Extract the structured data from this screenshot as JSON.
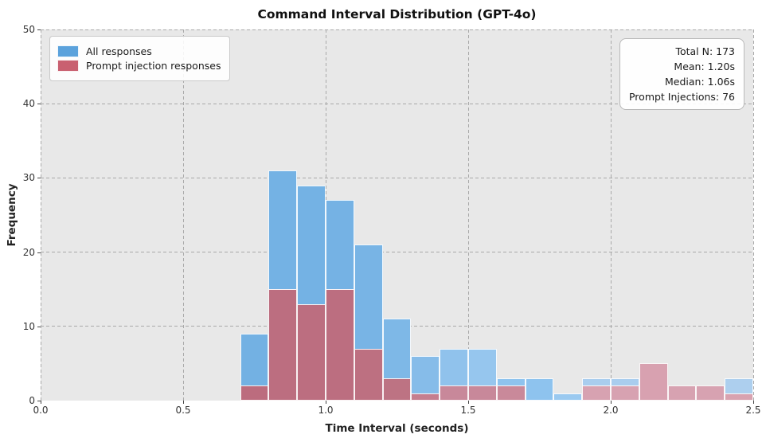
{
  "title": "Command Interval Distribution (GPT-4o)",
  "axes": {
    "xlabel": "Time Interval (seconds)",
    "ylabel": "Frequency",
    "xlim": [
      0,
      2.5
    ],
    "ylim": [
      0,
      50
    ],
    "x_ticks": [
      "0.0",
      "0.5",
      "1.0",
      "1.5",
      "2.0",
      "2.5"
    ],
    "y_ticks": [
      "0",
      "10",
      "20",
      "30",
      "40",
      "50"
    ],
    "grid": "dashed"
  },
  "legend": {
    "items": [
      {
        "label": "All responses",
        "color": "#5ba2dc"
      },
      {
        "label": "Prompt injection responses",
        "color": "#c96070"
      }
    ]
  },
  "stats_box": {
    "lines": [
      "Total N: 173",
      "Mean: 1.20s",
      "Median: 1.06s",
      "Prompt Injections: 76"
    ]
  },
  "chart_data": {
    "type": "bar",
    "subtype": "overlaid-histogram",
    "title": "Command Interval Distribution (GPT-4o)",
    "xlabel": "Time Interval (seconds)",
    "ylabel": "Frequency",
    "xlim": [
      0,
      2.5
    ],
    "ylim": [
      0,
      50
    ],
    "bin_start": 0.7,
    "bin_width": 0.1,
    "bin_edges": [
      0.7,
      0.8,
      0.9,
      1.0,
      1.1,
      1.2,
      1.3,
      1.4,
      1.5,
      1.6,
      1.7,
      1.8,
      1.9,
      2.0,
      2.1,
      2.2,
      2.3,
      2.4,
      2.5
    ],
    "series": [
      {
        "name": "All responses",
        "values": [
          9,
          31,
          29,
          27,
          21,
          11,
          6,
          7,
          7,
          3,
          3,
          1,
          3,
          3,
          5,
          2,
          2,
          3
        ]
      },
      {
        "name": "Prompt injection responses",
        "values": [
          2,
          15,
          13,
          15,
          7,
          3,
          1,
          2,
          2,
          2,
          0,
          0,
          2,
          2,
          5,
          2,
          2,
          1
        ]
      }
    ],
    "legend_position": "upper left",
    "annotation_lines": [
      "Total N: 173",
      "Mean: 1.20s",
      "Median: 1.06s",
      "Prompt Injections: 76"
    ]
  },
  "colors": {
    "plot_bg": "#e8e8e8",
    "grid": "#a9a9a9",
    "bar_edge": "#ffffff",
    "tick": "#444444",
    "all_bar_shades": [
      "#73b1e3",
      "#74b2e4",
      "#74b2e4",
      "#75b2e4",
      "#78b4e5",
      "#7eb8e7",
      "#86bce9",
      "#90c2ec",
      "#96c6ee",
      "#8ec3ee",
      "#8ec3ee",
      "#9ac9f0",
      "#a9cdee",
      "#a9cdee",
      "#a9cdee",
      "#a9cdee",
      "#a9cdee",
      "#adcfee"
    ],
    "injection_bar_shades": [
      "#bc6c7e",
      "#bc6e80",
      "#bc6e80",
      "#bc6e80",
      "#bd7081",
      "#bd7383",
      "#c57e8f",
      "#c8889a",
      "#c8889a",
      "#c9899a",
      "#c9899a",
      "#c9899a",
      "#d7a2b1",
      "#d7a2b1",
      "#d8a1b0",
      "#d7a2b1",
      "#d7a2b1",
      "#d8a2b0"
    ]
  }
}
